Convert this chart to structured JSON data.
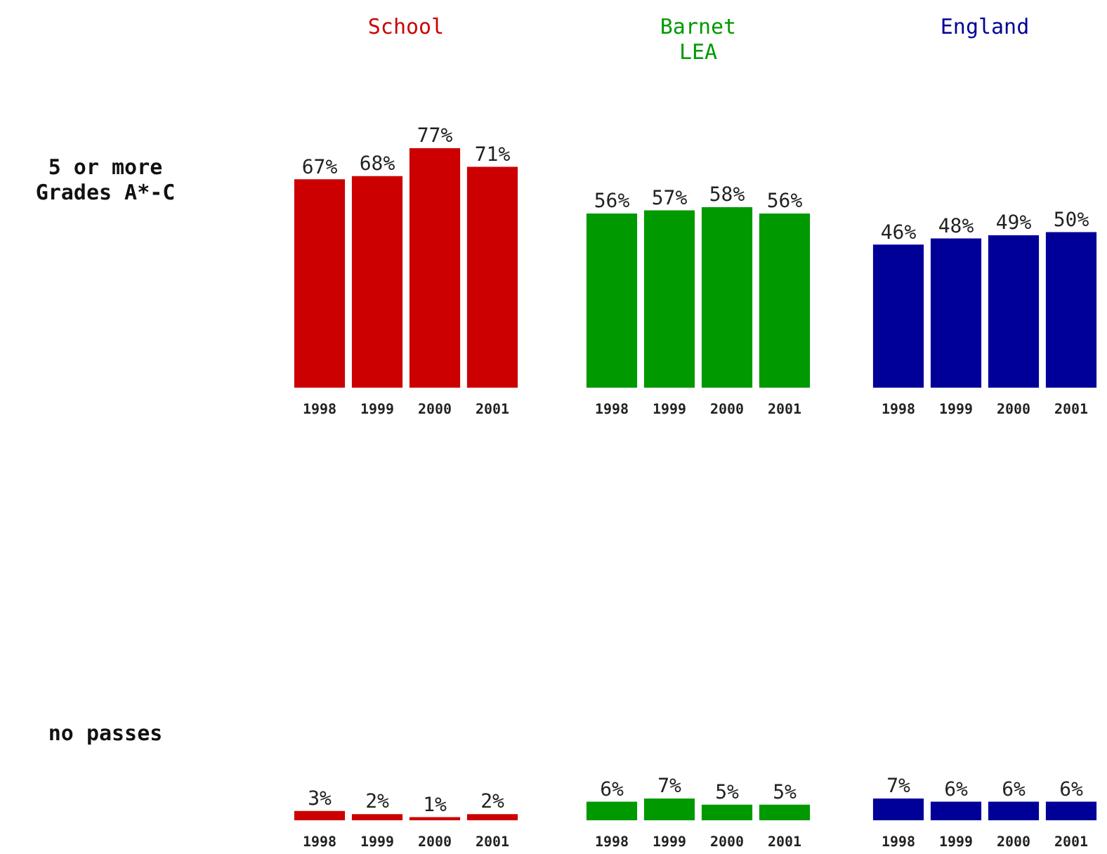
{
  "chart_data": [
    {
      "type": "bar",
      "title": "School",
      "ylabel": "5 or more Grades A*-C",
      "categories": [
        "1998",
        "1999",
        "2000",
        "2001"
      ],
      "values": [
        67,
        68,
        77,
        71
      ],
      "value_labels": [
        "67%",
        "68%",
        "77%",
        "71%"
      ],
      "color": "#cc0000"
    },
    {
      "type": "bar",
      "title": "Barnet LEA",
      "categories": [
        "1998",
        "1999",
        "2000",
        "2001"
      ],
      "values": [
        56,
        57,
        58,
        56
      ],
      "value_labels": [
        "56%",
        "57%",
        "58%",
        "56%"
      ],
      "color": "#009900"
    },
    {
      "type": "bar",
      "title": "England",
      "categories": [
        "1998",
        "1999",
        "2000",
        "2001"
      ],
      "values": [
        46,
        48,
        49,
        50
      ],
      "value_labels": [
        "46%",
        "48%",
        "49%",
        "50%"
      ],
      "color": "#000099"
    },
    {
      "type": "bar",
      "ylabel": "no passes",
      "categories": [
        "1998",
        "1999",
        "2000",
        "2001"
      ],
      "values": [
        3,
        2,
        1,
        2
      ],
      "value_labels": [
        "3%",
        "2%",
        "1%",
        "2%"
      ],
      "color": "#cc0000"
    },
    {
      "type": "bar",
      "categories": [
        "1998",
        "1999",
        "2000",
        "2001"
      ],
      "values": [
        6,
        7,
        5,
        5
      ],
      "value_labels": [
        "6%",
        "7%",
        "5%",
        "5%"
      ],
      "color": "#009900"
    },
    {
      "type": "bar",
      "categories": [
        "1998",
        "1999",
        "2000",
        "2001"
      ],
      "values": [
        7,
        6,
        6,
        6
      ],
      "value_labels": [
        "7%",
        "6%",
        "6%",
        "6%"
      ],
      "color": "#000099"
    }
  ]
}
